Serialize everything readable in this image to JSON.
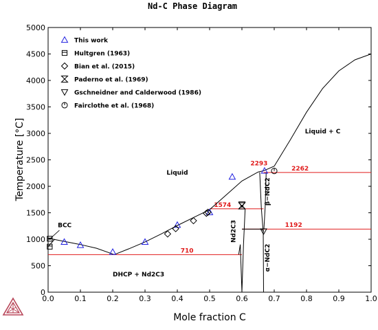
{
  "chart_data": {
    "type": "scatter",
    "title": "Nd-C Phase Diagram",
    "xlabel": "Mole fraction C",
    "ylabel": "Temperature [°C]",
    "xlim": [
      0,
      1
    ],
    "ylim": [
      0,
      5000
    ],
    "x_ticks": [
      "0.0",
      "0.1",
      "0.2",
      "0.3",
      "0.4",
      "0.5",
      "0.6",
      "0.7",
      "0.8",
      "0.9",
      "1.0"
    ],
    "y_ticks": [
      "0",
      "500",
      "1000",
      "1500",
      "2000",
      "2500",
      "3000",
      "3500",
      "4000",
      "4500",
      "5000"
    ],
    "grid": false,
    "legend_position": "top-left",
    "colors": {
      "calculated": "#000000",
      "invariant": "#e01a1a",
      "this_work": "#2020e0"
    },
    "legend": [
      {
        "label": "This work",
        "marker": "triangle-up",
        "color": "#2020e0"
      },
      {
        "label": "Hultgren (1963)",
        "marker": "square-half",
        "color": "#000000"
      },
      {
        "label": "Bian et al. (2015)",
        "marker": "diamond",
        "color": "#000000"
      },
      {
        "label": "Paderno et al. (1969)",
        "marker": "hourglass",
        "color": "#000000"
      },
      {
        "label": "Gschneidner and Calderwood (1986)",
        "marker": "triangle-down",
        "color": "#000000"
      },
      {
        "label": "Fairclothe et al. (1968)",
        "marker": "circle-bar",
        "color": "#000000"
      }
    ],
    "series": [
      {
        "name": "This work",
        "marker": "triangle-up",
        "x": [
          0.05,
          0.1,
          0.2,
          0.3,
          0.4,
          0.5,
          0.57,
          0.67
        ],
        "y": [
          950,
          890,
          760,
          950,
          1270,
          1510,
          2180,
          2293
        ]
      },
      {
        "name": "Hultgren (1963)",
        "marker": "square-half",
        "x": [
          0.005,
          0.005
        ],
        "y": [
          1010,
          860
        ]
      },
      {
        "name": "Bian et al. (2015)",
        "marker": "diamond",
        "x": [
          0.37,
          0.395,
          0.45,
          0.49,
          0.495
        ],
        "y": [
          1100,
          1200,
          1350,
          1490,
          1510
        ]
      },
      {
        "name": "Paderno et al. (1969)",
        "marker": "hourglass",
        "x": [
          0.6
        ],
        "y": [
          1630
        ]
      },
      {
        "name": "Gschneidner and Calderwood (1986)",
        "marker": "triangle-down",
        "x": [
          0.6,
          0.667
        ],
        "y": [
          1660,
          1150
        ]
      },
      {
        "name": "Fairclothe et al. (1968)",
        "marker": "circle-bar",
        "x": [
          0.7
        ],
        "y": [
          2290
        ]
      }
    ],
    "invariants": [
      {
        "label": "710",
        "T": 710,
        "x1": 0.0,
        "x2": 0.6
      },
      {
        "label": "1574",
        "T": 1574,
        "x1": 0.5,
        "x2": 0.667
      },
      {
        "label": "1192",
        "T": 1192,
        "x1": 0.6,
        "x2": 1.0
      },
      {
        "label": "2262",
        "T": 2262,
        "x1": 0.667,
        "x2": 1.0
      }
    ],
    "annotations": [
      {
        "text": "2293"
      }
    ],
    "phase_boundaries": [
      {
        "name": "liquidus-left",
        "x": [
          0.0,
          0.05,
          0.1,
          0.15,
          0.205
        ],
        "y": [
          1020,
          960,
          900,
          830,
          710
        ]
      },
      {
        "name": "liquidus-mid",
        "x": [
          0.205,
          0.25,
          0.3,
          0.35,
          0.4,
          0.45,
          0.5,
          0.55,
          0.6,
          0.65,
          0.667
        ],
        "y": [
          710,
          820,
          950,
          1100,
          1260,
          1410,
          1560,
          1830,
          2100,
          2270,
          2293
        ]
      },
      {
        "name": "liquidus-right",
        "x": [
          0.667,
          0.7,
          0.75,
          0.8,
          0.85,
          0.9,
          0.95,
          1.0
        ],
        "y": [
          2293,
          2380,
          2880,
          3400,
          3850,
          4180,
          4390,
          4500
        ]
      },
      {
        "name": "Nd2C3-lower-left",
        "x": [
          0.59,
          0.595,
          0.6
        ],
        "y": [
          710,
          900,
          0
        ]
      },
      {
        "name": "Nd2C3-upper",
        "x": [
          0.59,
          0.6,
          0.61
        ],
        "y": [
          1574,
          1640,
          1574
        ]
      },
      {
        "name": "Nd2C3-right",
        "x": [
          0.61,
          0.605,
          0.6
        ],
        "y": [
          1574,
          900,
          0
        ]
      },
      {
        "name": "NdC2-lower",
        "x": [
          0.6,
          0.66,
          0.668
        ],
        "y": [
          1192,
          1192,
          1150
        ]
      },
      {
        "name": "NdC2-left",
        "x": [
          0.655,
          0.66,
          0.665
        ],
        "y": [
          2262,
          1600,
          1192
        ]
      },
      {
        "name": "NdC2-right",
        "x": [
          0.675,
          0.672,
          0.668
        ],
        "y": [
          2262,
          1600,
          1192
        ]
      },
      {
        "name": "NdC2-bottom",
        "x": [
          0.666,
          0.667
        ],
        "y": [
          1192,
          0
        ]
      },
      {
        "name": "Nd-solvus",
        "x": [
          0.0,
          0.02
        ],
        "y": [
          860,
          1000
        ]
      }
    ],
    "region_labels": [
      {
        "text": "BCC",
        "x": 0.03,
        "y": 1230
      },
      {
        "text": "Liquid",
        "x": 0.4,
        "y": 2220
      },
      {
        "text": "Liquid + C",
        "x": 0.85,
        "y": 3000
      },
      {
        "text": "DHCP + Nd2C3",
        "x": 0.28,
        "y": 300
      }
    ],
    "vertical_labels": [
      {
        "text": "Nd2C3",
        "x": 0.58,
        "y": 1150
      },
      {
        "text": "β−NdC2",
        "x": 0.685,
        "y": 1900
      },
      {
        "text": "α−NdC2",
        "x": 0.685,
        "y": 650
      }
    ]
  }
}
